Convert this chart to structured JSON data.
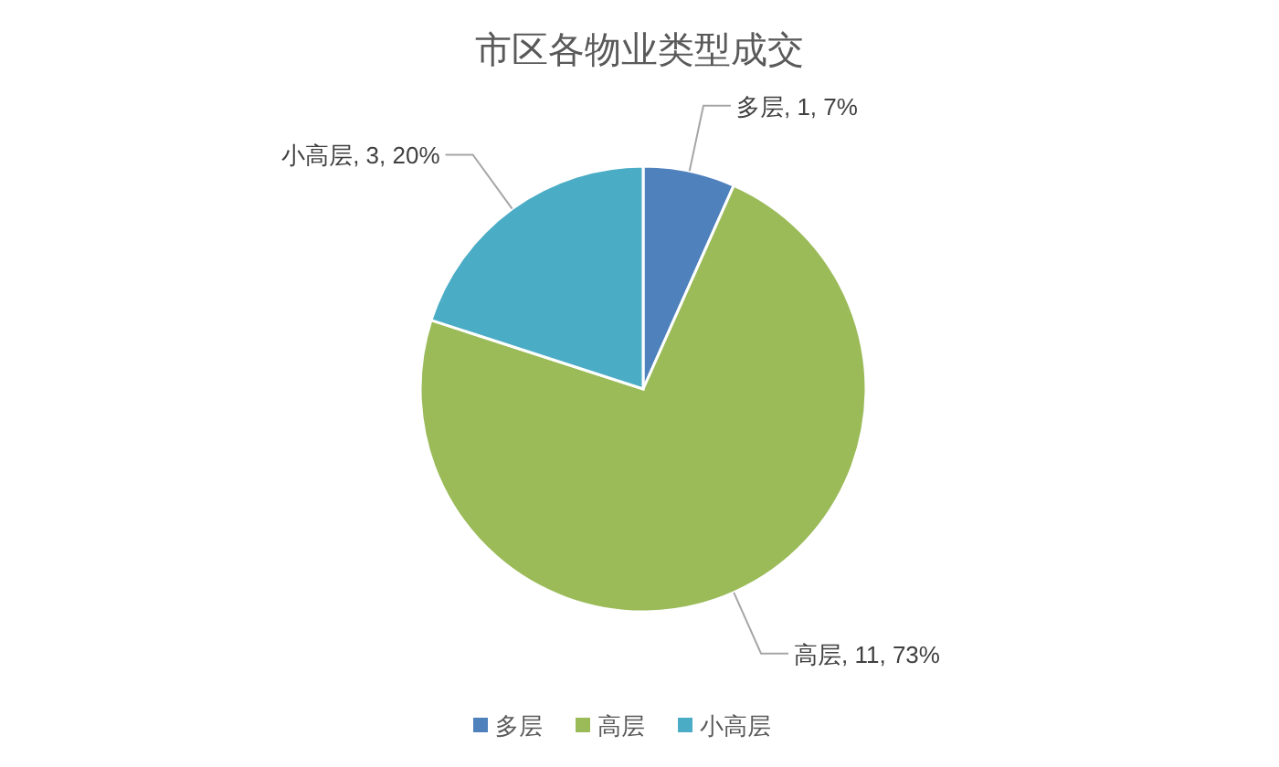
{
  "chart_data": {
    "type": "pie",
    "title": "市区各物业类型成交",
    "categories": [
      "多层",
      "高层",
      "小高层"
    ],
    "values": [
      1,
      11,
      3
    ],
    "colors": [
      "#4f81bd",
      "#9bbb59",
      "#4bacc6"
    ],
    "value_labels": [
      "多层, 1, 7%",
      "高层, 11, 73%",
      "小高层, 3, 20%"
    ],
    "legend": "bottom"
  }
}
